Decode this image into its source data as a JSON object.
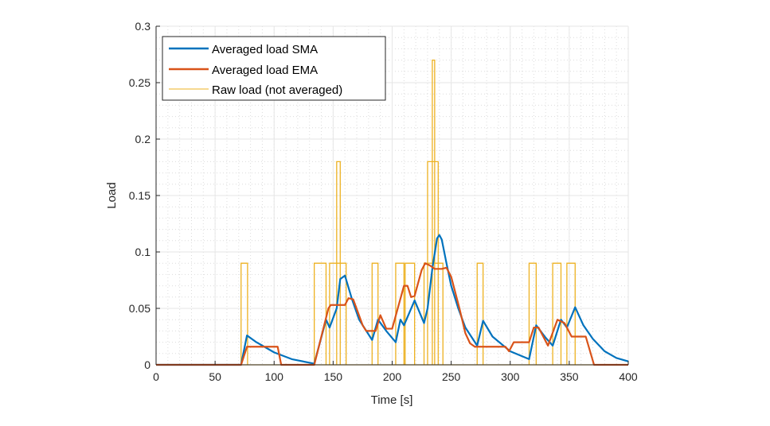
{
  "chart_data": {
    "type": "line",
    "title": "",
    "xlabel": "Time [s]",
    "ylabel": "Load",
    "xlim": [
      0,
      400
    ],
    "ylim": [
      0,
      0.3
    ],
    "x_ticks": [
      "0",
      "50",
      "100",
      "150",
      "200",
      "250",
      "300",
      "350",
      "400"
    ],
    "y_ticks": [
      "0",
      "0.05",
      "0.1",
      "0.15",
      "0.2",
      "0.25",
      "0.3"
    ],
    "grid": "major and minor (dotted)",
    "legend_position": "top-left",
    "series": [
      {
        "name": "Averaged load SMA",
        "color": "#0072BD",
        "points": [
          [
            0,
            0
          ],
          [
            72,
            0
          ],
          [
            77,
            0.026
          ],
          [
            85,
            0.02
          ],
          [
            100,
            0.011
          ],
          [
            115,
            0.005
          ],
          [
            134,
            0.001
          ],
          [
            144,
            0.04
          ],
          [
            147,
            0.033
          ],
          [
            153,
            0.05
          ],
          [
            156,
            0.076
          ],
          [
            160,
            0.079
          ],
          [
            166,
            0.058
          ],
          [
            172,
            0.04
          ],
          [
            183,
            0.022
          ],
          [
            188,
            0.04
          ],
          [
            195,
            0.03
          ],
          [
            203,
            0.02
          ],
          [
            207,
            0.04
          ],
          [
            210,
            0.035
          ],
          [
            219,
            0.057
          ],
          [
            227,
            0.037
          ],
          [
            230,
            0.05
          ],
          [
            234,
            0.085
          ],
          [
            238,
            0.112
          ],
          [
            240,
            0.115
          ],
          [
            242,
            0.111
          ],
          [
            246,
            0.09
          ],
          [
            250,
            0.07
          ],
          [
            256,
            0.05
          ],
          [
            262,
            0.033
          ],
          [
            272,
            0.017
          ],
          [
            277,
            0.039
          ],
          [
            285,
            0.025
          ],
          [
            300,
            0.012
          ],
          [
            316,
            0.005
          ],
          [
            322,
            0.035
          ],
          [
            330,
            0.024
          ],
          [
            336,
            0.017
          ],
          [
            343,
            0.04
          ],
          [
            348,
            0.033
          ],
          [
            355,
            0.051
          ],
          [
            362,
            0.035
          ],
          [
            370,
            0.023
          ],
          [
            380,
            0.012
          ],
          [
            390,
            0.006
          ],
          [
            400,
            0.003
          ]
        ]
      },
      {
        "name": "Averaged load EMA",
        "color": "#D95319",
        "points": [
          [
            0,
            0
          ],
          [
            72,
            0
          ],
          [
            77,
            0.016
          ],
          [
            103,
            0.016
          ],
          [
            106,
            0
          ],
          [
            134,
            0
          ],
          [
            146,
            0.05
          ],
          [
            148,
            0.053
          ],
          [
            160,
            0.053
          ],
          [
            163,
            0.059
          ],
          [
            167,
            0.058
          ],
          [
            175,
            0.035
          ],
          [
            178,
            0.03
          ],
          [
            186,
            0.03
          ],
          [
            190,
            0.044
          ],
          [
            195,
            0.032
          ],
          [
            200,
            0.032
          ],
          [
            210,
            0.07
          ],
          [
            213,
            0.07
          ],
          [
            216,
            0.06
          ],
          [
            219,
            0.061
          ],
          [
            225,
            0.084
          ],
          [
            228,
            0.09
          ],
          [
            232,
            0.088
          ],
          [
            236,
            0.085
          ],
          [
            242,
            0.085
          ],
          [
            246,
            0.086
          ],
          [
            250,
            0.078
          ],
          [
            257,
            0.05
          ],
          [
            262,
            0.028
          ],
          [
            266,
            0.019
          ],
          [
            270,
            0.016
          ],
          [
            296,
            0.016
          ],
          [
            299,
            0.012
          ],
          [
            303,
            0.02
          ],
          [
            316,
            0.02
          ],
          [
            320,
            0.033
          ],
          [
            324,
            0.033
          ],
          [
            332,
            0.017
          ],
          [
            340,
            0.04
          ],
          [
            346,
            0.037
          ],
          [
            352,
            0.025
          ],
          [
            364,
            0.025
          ],
          [
            371,
            0
          ],
          [
            400,
            0
          ]
        ]
      },
      {
        "name": "Raw load (not averaged)",
        "color": "#EDB120",
        "pulses": [
          [
            72,
            77.5,
            0.09
          ],
          [
            134,
            144,
            0.09
          ],
          [
            147,
            161,
            0.09
          ],
          [
            153,
            156,
            0.18
          ],
          [
            183,
            188,
            0.09
          ],
          [
            203,
            210,
            0.09
          ],
          [
            211,
            219,
            0.09
          ],
          [
            227,
            243,
            0.09
          ],
          [
            230,
            239,
            0.18
          ],
          [
            234,
            236,
            0.27
          ],
          [
            272,
            277,
            0.09
          ],
          [
            316,
            322,
            0.09
          ],
          [
            336,
            343,
            0.09
          ],
          [
            348,
            355,
            0.09
          ]
        ]
      }
    ]
  }
}
